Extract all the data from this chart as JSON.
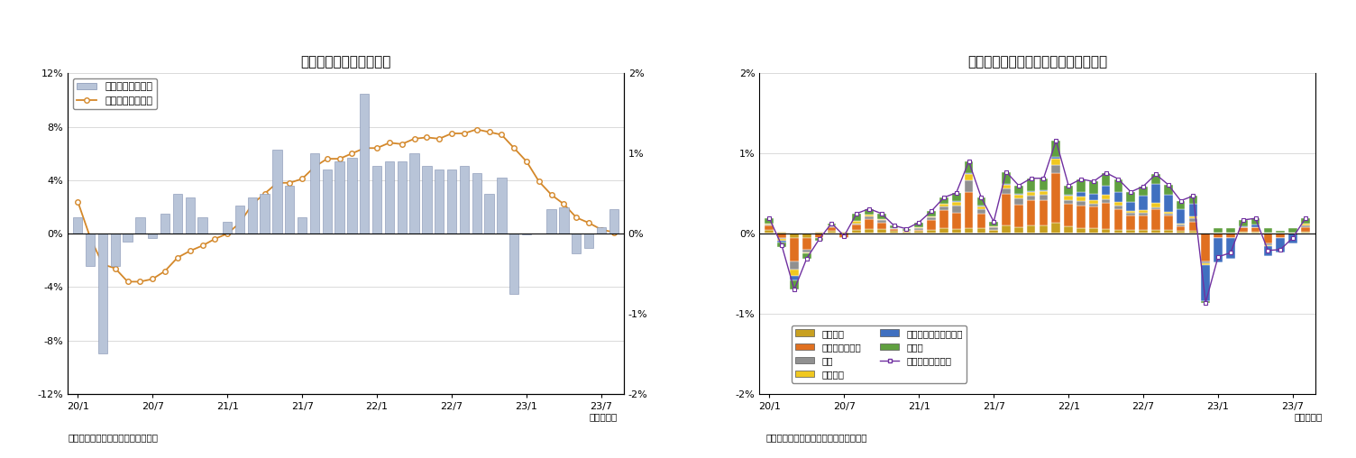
{
  "title1": "国内企業物価指数の推移",
  "title2": "国内企業物価指数の前月比寄与度分解",
  "source1": "（資料）日本銀行「企業物価指数」",
  "source2": "（資料）日本銀行「国内企業物価指数」",
  "year_month_label": "（年・月）",
  "chart1": {
    "x_labels": [
      "20/1",
      "20/7",
      "21/1",
      "21/7",
      "22/1",
      "22/7",
      "23/1",
      "23/7"
    ],
    "bar_color": "#b8c4d8",
    "bar_edge_color": "#8090b0",
    "line_color": "#d4882a",
    "bar_values": [
      0.2,
      -0.4,
      -1.5,
      -0.4,
      -0.1,
      0.2,
      -0.05,
      0.25,
      0.5,
      0.45,
      0.2,
      0.0,
      0.15,
      0.35,
      0.45,
      0.5,
      1.05,
      0.6,
      0.2,
      1.0,
      0.8,
      0.9,
      0.95,
      1.75,
      0.85,
      0.9,
      0.9,
      1.0,
      0.85,
      0.8,
      0.8,
      0.85,
      0.75,
      0.5,
      0.7,
      -0.75,
      -0.01,
      0.0,
      0.3,
      0.33,
      -0.25,
      -0.18,
      0.08,
      0.3
    ],
    "line_values": [
      2.4,
      -0.3,
      -2.3,
      -2.6,
      -3.6,
      -3.6,
      -3.4,
      -2.8,
      -1.8,
      -1.3,
      -0.9,
      -0.4,
      0.0,
      0.8,
      2.2,
      3.0,
      3.8,
      3.8,
      4.1,
      5.0,
      5.6,
      5.6,
      6.0,
      6.4,
      6.4,
      6.8,
      6.7,
      7.1,
      7.2,
      7.1,
      7.5,
      7.5,
      7.8,
      7.6,
      7.4,
      6.4,
      5.4,
      3.9,
      2.9,
      2.2,
      1.2,
      0.8,
      0.3,
      0.1
    ],
    "legend_bar": "前月比（右目盛）",
    "legend_line": "前年比（左目盛）"
  },
  "chart2": {
    "x_labels": [
      "20/1",
      "20/7",
      "21/1",
      "21/7",
      "22/1",
      "22/7",
      "23/1",
      "23/7"
    ],
    "ylim": [
      -2.0,
      2.0
    ],
    "colors": {
      "chemical": "#c8a020",
      "petroleum": "#e07020",
      "steel": "#909090",
      "nonferrous": "#f0c820",
      "electricity": "#4070c0",
      "other": "#60a040"
    },
    "chemical": [
      0.05,
      0.02,
      -0.05,
      -0.05,
      0.02,
      0.03,
      0.02,
      0.05,
      0.06,
      0.06,
      0.03,
      0.02,
      0.04,
      0.05,
      0.07,
      0.06,
      0.07,
      0.07,
      0.05,
      0.1,
      0.08,
      0.1,
      0.1,
      0.14,
      0.09,
      0.07,
      0.07,
      0.06,
      0.05,
      0.05,
      0.05,
      0.05,
      0.05,
      0.03,
      0.03,
      0.01,
      0.01,
      0.01,
      0.02,
      0.02,
      0.01,
      0.01,
      0.01,
      0.02
    ],
    "petroleum": [
      0.05,
      -0.05,
      -0.3,
      -0.15,
      -0.05,
      0.05,
      -0.05,
      0.06,
      0.12,
      0.08,
      0.03,
      0.01,
      0.01,
      0.12,
      0.22,
      0.2,
      0.45,
      0.18,
      0.0,
      0.4,
      0.28,
      0.32,
      0.32,
      0.62,
      0.28,
      0.28,
      0.27,
      0.32,
      0.25,
      0.18,
      0.18,
      0.25,
      0.18,
      0.06,
      0.12,
      -0.35,
      -0.06,
      -0.06,
      0.06,
      0.06,
      -0.12,
      -0.06,
      0.0,
      0.06
    ],
    "steel": [
      0.01,
      -0.02,
      -0.1,
      -0.03,
      0.0,
      0.01,
      0.0,
      0.02,
      0.03,
      0.03,
      0.01,
      0.0,
      0.02,
      0.03,
      0.05,
      0.09,
      0.14,
      0.06,
      0.03,
      0.06,
      0.08,
      0.05,
      0.06,
      0.1,
      0.05,
      0.06,
      0.03,
      0.05,
      0.05,
      0.03,
      0.03,
      0.03,
      0.02,
      0.02,
      0.04,
      -0.02,
      0.0,
      0.0,
      0.0,
      0.0,
      -0.02,
      0.0,
      0.0,
      0.02
    ],
    "nonferrous": [
      0.01,
      -0.02,
      -0.08,
      -0.02,
      0.0,
      0.01,
      0.0,
      0.03,
      0.03,
      0.01,
      0.0,
      0.0,
      0.01,
      0.02,
      0.03,
      0.05,
      0.08,
      0.03,
      0.01,
      0.05,
      0.05,
      0.05,
      0.05,
      0.08,
      0.05,
      0.05,
      0.05,
      0.05,
      0.05,
      0.02,
      0.03,
      0.05,
      0.02,
      0.02,
      0.02,
      -0.02,
      0.0,
      0.0,
      0.0,
      0.0,
      -0.02,
      0.0,
      0.0,
      0.02
    ],
    "electricity": [
      0.01,
      -0.02,
      -0.05,
      0.0,
      0.0,
      0.0,
      0.0,
      0.0,
      0.0,
      0.0,
      0.0,
      0.0,
      0.0,
      0.0,
      0.0,
      0.01,
      0.01,
      0.01,
      0.0,
      0.01,
      0.01,
      0.01,
      0.01,
      0.02,
      0.01,
      0.06,
      0.08,
      0.12,
      0.12,
      0.12,
      0.18,
      0.24,
      0.22,
      0.18,
      0.16,
      -0.45,
      -0.3,
      -0.25,
      0.01,
      0.03,
      -0.12,
      -0.18,
      -0.12,
      0.01
    ],
    "other": [
      0.06,
      -0.06,
      -0.12,
      -0.06,
      -0.04,
      0.03,
      0.0,
      0.09,
      0.07,
      0.07,
      0.03,
      0.03,
      0.06,
      0.06,
      0.08,
      0.1,
      0.15,
      0.1,
      0.06,
      0.15,
      0.1,
      0.16,
      0.15,
      0.2,
      0.12,
      0.16,
      0.15,
      0.16,
      0.16,
      0.12,
      0.12,
      0.12,
      0.12,
      0.1,
      0.1,
      -0.03,
      0.06,
      0.06,
      0.08,
      0.08,
      0.06,
      0.03,
      0.06,
      0.06
    ],
    "total_line": [
      0.19,
      -0.15,
      -0.7,
      -0.31,
      -0.07,
      0.13,
      -0.03,
      0.25,
      0.31,
      0.25,
      0.1,
      0.06,
      0.14,
      0.28,
      0.45,
      0.51,
      0.9,
      0.45,
      0.15,
      0.77,
      0.6,
      0.69,
      0.69,
      1.16,
      0.6,
      0.68,
      0.65,
      0.76,
      0.68,
      0.52,
      0.59,
      0.74,
      0.61,
      0.41,
      0.47,
      -0.86,
      -0.29,
      -0.24,
      0.17,
      0.19,
      -0.21,
      -0.2,
      -0.05,
      0.19
    ]
  }
}
